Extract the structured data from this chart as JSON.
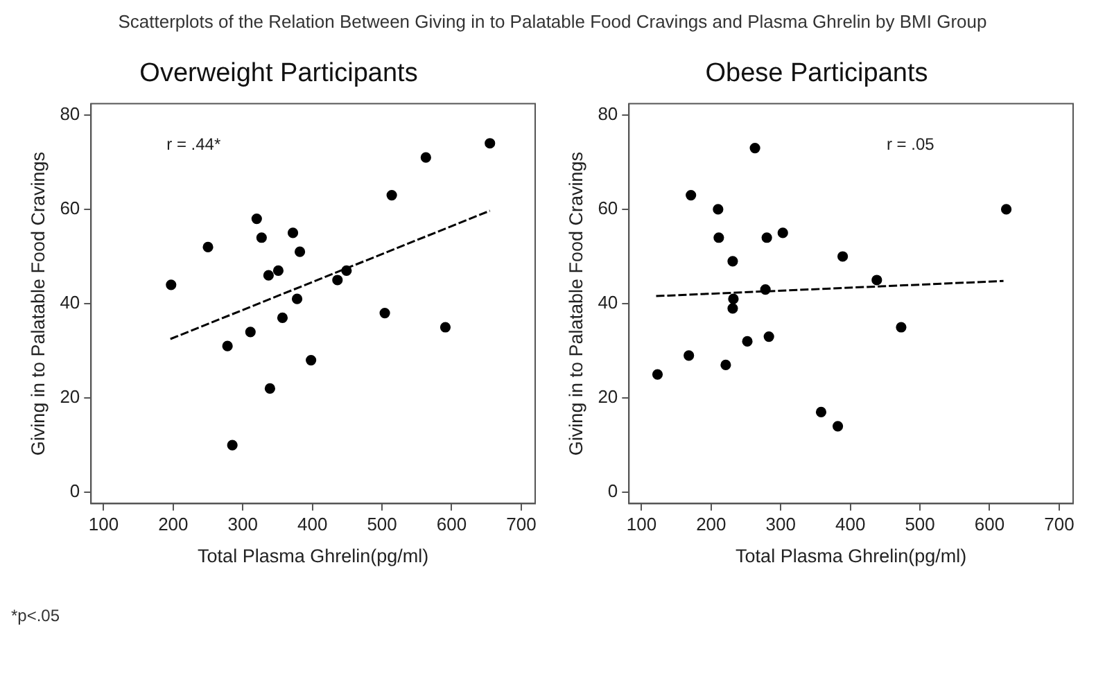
{
  "chart_data": [
    {
      "type": "other",
      "title": "Scatterplots of the Relation Between Giving in to Palatable Food Cravings and Plasma Ghrelin by BMI Group",
      "annotations": [
        "*p<.05"
      ]
    },
    {
      "type": "scatter",
      "title": "Overweight Participants",
      "xlabel": "Total Plasma Ghrelin(pg/ml)",
      "ylabel": "Giving in to Palatable Food Cravings",
      "annotations": [
        "r = .44*"
      ],
      "xlim": [
        82,
        720
      ],
      "ylim": [
        -2.4,
        82.4
      ],
      "xticks": [
        100,
        200,
        300,
        400,
        500,
        600,
        700
      ],
      "yticks": [
        0,
        20,
        40,
        60,
        80
      ],
      "grid": false,
      "legend": false,
      "series": [
        {
          "type": "scatter",
          "marker": "circle",
          "color": "#000000",
          "x": [
            197,
            250,
            278,
            285,
            311,
            320,
            327,
            337,
            339,
            351,
            357,
            372,
            378,
            382,
            398,
            436,
            449,
            504,
            514,
            563,
            591,
            655
          ],
          "values": [
            44,
            52,
            31,
            10,
            34,
            58,
            54,
            46,
            22,
            47,
            37,
            55,
            41,
            51,
            28,
            45,
            47,
            38,
            63,
            71,
            35,
            74
          ]
        },
        {
          "type": "line",
          "color": "#000000",
          "line_style": "dashed",
          "x": [
            196,
            655
          ],
          "values": [
            32.5,
            59.7
          ]
        }
      ]
    },
    {
      "type": "scatter",
      "title": "Obese Participants",
      "xlabel": "Total Plasma Ghrelin(pg/ml)",
      "ylabel": "Giving in to Palatable Food Cravings",
      "annotations": [
        "r = .05"
      ],
      "xlim": [
        82,
        720
      ],
      "ylim": [
        -2.4,
        82.4
      ],
      "xticks": [
        100,
        200,
        300,
        400,
        500,
        600,
        700
      ],
      "yticks": [
        0,
        20,
        40,
        60,
        80
      ],
      "grid": false,
      "legend": false,
      "series": [
        {
          "type": "scatter",
          "marker": "circle",
          "color": "#000000",
          "x": [
            123,
            168,
            171,
            210,
            211,
            221,
            231,
            232,
            231,
            252,
            263,
            280,
            278,
            283,
            303,
            358,
            382,
            389,
            438,
            473,
            624
          ],
          "values": [
            25,
            29,
            63,
            60,
            54,
            27,
            49,
            41,
            39,
            32,
            73,
            54,
            43,
            33,
            55,
            17,
            14,
            50,
            45,
            35,
            60
          ]
        },
        {
          "type": "line",
          "color": "#000000",
          "line_style": "dashed",
          "x": [
            121,
            620
          ],
          "values": [
            41.6,
            44.8
          ]
        }
      ]
    }
  ]
}
